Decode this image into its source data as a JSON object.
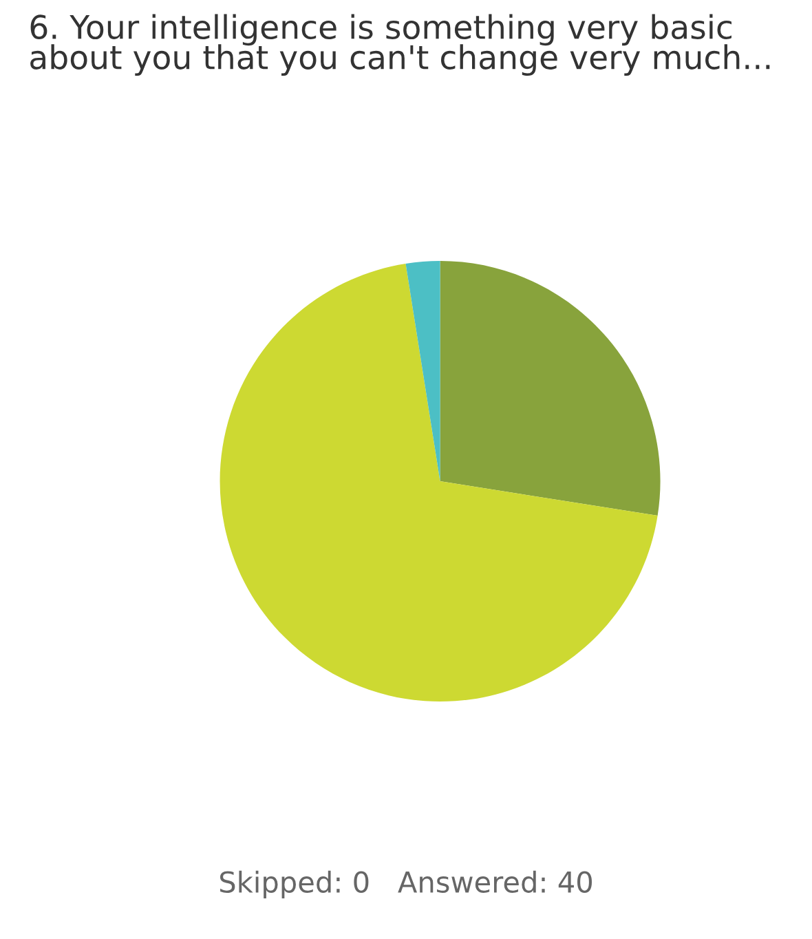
{
  "chart_data": {
    "type": "pie",
    "title": "6. Your intelligence is something very basic about you that you can't change very much...",
    "categories": [
      null,
      null,
      null
    ],
    "values": [
      27.5,
      70,
      2.5
    ],
    "colors": [
      "#88a33c",
      "#cdd932",
      "#4cbfc5"
    ],
    "annotations": [
      "Skipped: 0",
      "Answered: 40"
    ]
  }
}
